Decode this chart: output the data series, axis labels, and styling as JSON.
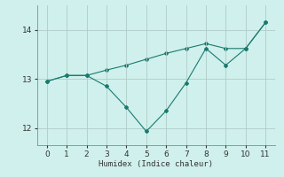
{
  "x_zigzag": [
    0,
    1,
    2,
    3,
    4,
    5,
    6,
    7,
    8,
    9,
    10,
    11
  ],
  "y_zigzag": [
    12.95,
    13.07,
    13.07,
    12.85,
    12.42,
    11.93,
    12.35,
    12.92,
    13.62,
    13.28,
    13.62,
    14.15
  ],
  "x_trend": [
    0,
    1,
    2,
    3,
    4,
    5,
    6,
    7,
    8,
    9,
    10,
    11
  ],
  "y_trend": [
    12.95,
    13.07,
    13.07,
    13.18,
    13.28,
    13.4,
    13.52,
    13.62,
    13.72,
    13.62,
    13.62,
    14.15
  ],
  "line_color": "#1a7a6e",
  "bg_color": "#cff0ec",
  "grid_color": "#b0ccc8",
  "xlabel": "Humidex (Indice chaleur)",
  "xlim": [
    -0.5,
    11.5
  ],
  "ylim": [
    11.65,
    14.5
  ],
  "yticks": [
    12,
    13,
    14
  ],
  "xticks": [
    0,
    1,
    2,
    3,
    4,
    5,
    6,
    7,
    8,
    9,
    10,
    11
  ]
}
